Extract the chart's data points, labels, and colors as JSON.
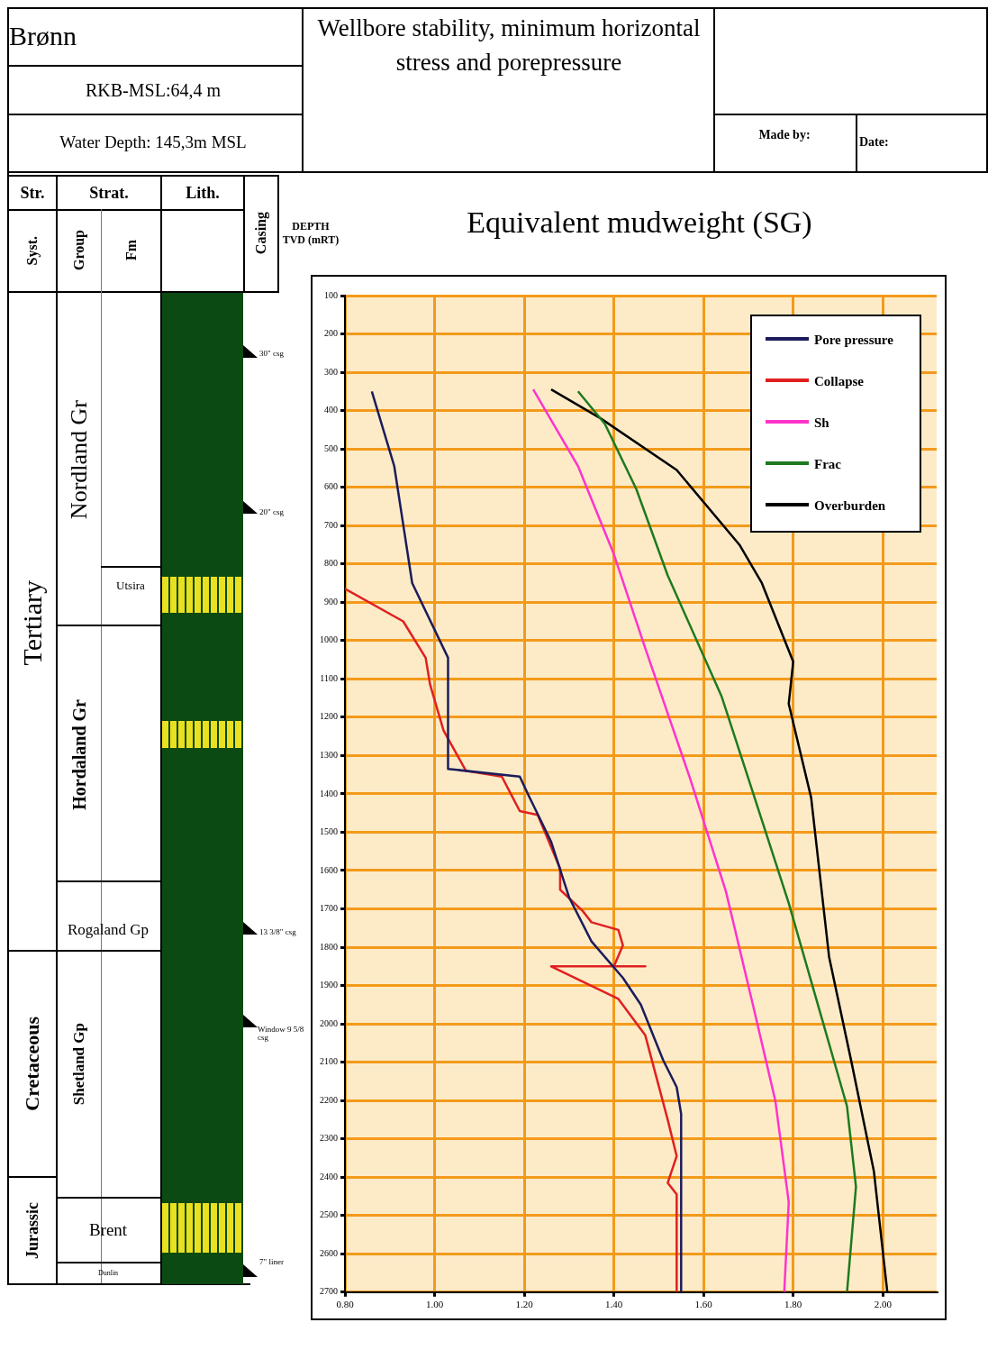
{
  "chart_data": {
    "type": "line",
    "title": "Wellbore stability, minimum horizontal stress and porepressure",
    "xlabel": "Equivalent mudweight (SG)",
    "ylabel": "DEPTH TVD (mRT)",
    "xlim": [
      0.8,
      2.12
    ],
    "xticks": [
      {
        "value": 0.8,
        "label": "0.80"
      },
      {
        "value": 1.0,
        "label": "1.00"
      },
      {
        "value": 1.2,
        "label": "1.20"
      },
      {
        "value": 1.4,
        "label": "1.40"
      },
      {
        "value": 1.6,
        "label": "1.60"
      },
      {
        "value": 1.8,
        "label": "1.80"
      },
      {
        "value": 2.0,
        "label": "2.00"
      }
    ],
    "ylim": [
      2700,
      100
    ],
    "yticks": [
      100,
      200,
      300,
      400,
      500,
      600,
      700,
      800,
      900,
      1000,
      1100,
      1200,
      1300,
      1400,
      1500,
      1600,
      1700,
      1800,
      1900,
      2000,
      2100,
      2200,
      2300,
      2400,
      2500,
      2600,
      2700
    ],
    "grid": true,
    "legend": "top right",
    "marker": "none",
    "line_style": "solid",
    "series": [
      {
        "name": "Pore pressure",
        "color": "#1c1c5c",
        "x": [
          0.86,
          0.91,
          0.95,
          1.03,
          1.03,
          1.19,
          1.21,
          1.26,
          1.3,
          1.35,
          1.42,
          1.46,
          1.51,
          1.54,
          1.55,
          1.55
        ],
        "values": [
          350,
          545,
          850,
          1045,
          1335,
          1355,
          1405,
          1525,
          1670,
          1785,
          1880,
          1950,
          2095,
          2165,
          2235,
          2700
        ]
      },
      {
        "name": "Collapse",
        "color": "#e02020",
        "x": [
          0.8,
          0.93,
          0.98,
          0.99,
          1.02,
          1.07,
          1.15,
          1.17,
          1.19,
          1.23,
          1.28,
          1.28,
          1.33,
          1.35,
          1.41,
          1.42,
          1.4,
          1.47,
          1.26,
          1.41,
          1.47,
          1.52,
          1.54,
          1.52,
          1.54,
          1.54
        ],
        "values": [
          865,
          950,
          1045,
          1115,
          1235,
          1340,
          1355,
          1400,
          1445,
          1455,
          1595,
          1650,
          1705,
          1735,
          1755,
          1795,
          1850,
          1850,
          1850,
          1935,
          2030,
          2250,
          2345,
          2415,
          2445,
          2700
        ]
      },
      {
        "name": "Sh",
        "color": "#ff33cc",
        "x": [
          1.22,
          1.32,
          1.4,
          1.47,
          1.57,
          1.65,
          1.71,
          1.76,
          1.79,
          1.78
        ],
        "values": [
          345,
          545,
          775,
          1020,
          1360,
          1655,
          1950,
          2200,
          2465,
          2700
        ]
      },
      {
        "name": "Frac",
        "color": "#1e7a1e",
        "x": [
          1.32,
          1.38,
          1.45,
          1.52,
          1.64,
          1.7,
          1.79,
          1.86,
          1.92,
          1.94,
          1.92
        ],
        "values": [
          350,
          435,
          605,
          830,
          1145,
          1360,
          1685,
          1970,
          2215,
          2425,
          2700
        ]
      },
      {
        "name": "Overburden",
        "color": "#000000",
        "x": [
          1.26,
          1.37,
          1.54,
          1.68,
          1.73,
          1.8,
          1.79,
          1.84,
          1.88,
          1.93,
          1.98,
          2.01
        ],
        "values": [
          345,
          420,
          555,
          750,
          850,
          1055,
          1165,
          1410,
          1825,
          2100,
          2385,
          2700
        ]
      }
    ],
    "annotations": [
      "Brønn",
      "RKB-MSL:64,4 m",
      "Water Depth: 145,3m MSL",
      "Made by:",
      "Date:",
      "Str.",
      "Strat.",
      "Lith.",
      "Syst.",
      "Group",
      "Fm",
      "Casing",
      "Tertiary",
      "Cretaceous",
      "Jurassic",
      "Nordland Gr",
      "Hordaland Gr",
      "Rogaland Gp",
      "Shetland Gp",
      "Utsira",
      "Brent",
      "Dunlin",
      "30\" csg",
      "20\" csg",
      "13 3/8\" csg",
      "Window 9 5/8 csg",
      "7\" liner"
    ]
  }
}
